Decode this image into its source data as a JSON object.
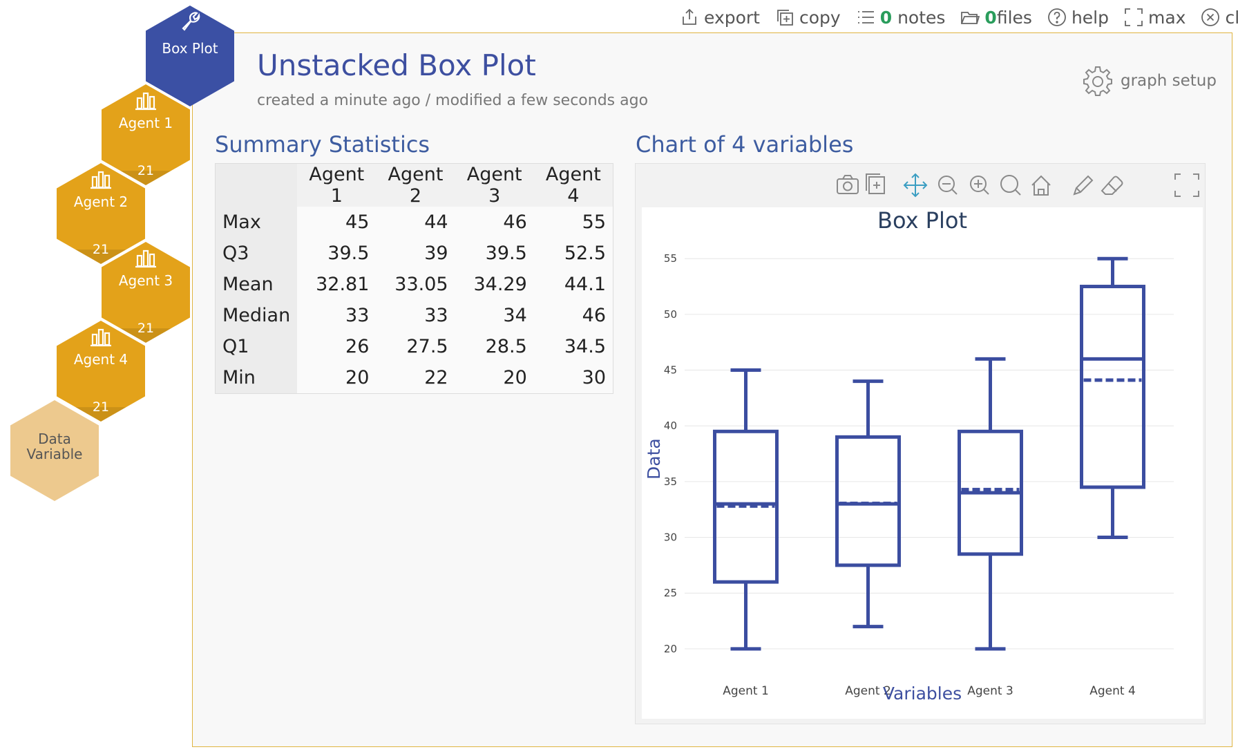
{
  "toolbar": {
    "export": "export",
    "copy": "copy",
    "notes_count": "0",
    "notes": "notes",
    "files_count": "0",
    "files": "files",
    "help": "help",
    "max": "max",
    "close": "close"
  },
  "page": {
    "title": "Unstacked Box Plot",
    "subtitle": "created a minute ago / modified a few seconds ago",
    "graph_setup": "graph setup"
  },
  "nav": {
    "box_plot": "Box Plot",
    "agents": [
      {
        "label": "Agent 1",
        "count": "21"
      },
      {
        "label": "Agent 2",
        "count": "21"
      },
      {
        "label": "Agent 3",
        "count": "21"
      },
      {
        "label": "Agent 4",
        "count": "21"
      }
    ],
    "data_variable_line1": "Data",
    "data_variable_line2": "Variable"
  },
  "stats": {
    "heading": "Summary Statistics",
    "columns": [
      "Agent 1",
      "Agent 2",
      "Agent 3",
      "Agent 4"
    ],
    "rows": [
      {
        "label": "Max",
        "values": [
          "45",
          "44",
          "46",
          "55"
        ]
      },
      {
        "label": "Q3",
        "values": [
          "39.5",
          "39",
          "39.5",
          "52.5"
        ]
      },
      {
        "label": "Mean",
        "values": [
          "32.81",
          "33.05",
          "34.29",
          "44.1"
        ]
      },
      {
        "label": "Median",
        "values": [
          "33",
          "33",
          "34",
          "46"
        ]
      },
      {
        "label": "Q1",
        "values": [
          "26",
          "27.5",
          "28.5",
          "34.5"
        ]
      },
      {
        "label": "Min",
        "values": [
          "20",
          "22",
          "20",
          "30"
        ]
      }
    ]
  },
  "chart": {
    "heading": "Chart of 4 variables"
  },
  "colors": {
    "accent": "#3d4fa0",
    "gold": "#e3a21a",
    "box": "#3b4da0"
  },
  "chart_data": {
    "type": "box",
    "title": "Box Plot",
    "xlabel": "Variables",
    "ylabel": "Data",
    "ylim": [
      19,
      56.5
    ],
    "yticks": [
      20,
      25,
      30,
      35,
      40,
      45,
      50,
      55
    ],
    "grid": true,
    "categories": [
      "Agent 1",
      "Agent 2",
      "Agent 3",
      "Agent 4"
    ],
    "series": [
      {
        "min": 20,
        "q1": 26,
        "median": 33,
        "mean": 32.81,
        "q3": 39.5,
        "max": 45
      },
      {
        "min": 22,
        "q1": 27.5,
        "median": 33,
        "mean": 33.05,
        "q3": 39,
        "max": 44
      },
      {
        "min": 20,
        "q1": 28.5,
        "median": 34,
        "mean": 34.29,
        "q3": 39.5,
        "max": 46
      },
      {
        "min": 30,
        "q1": 34.5,
        "median": 46,
        "mean": 44.1,
        "q3": 52.5,
        "max": 55
      }
    ]
  }
}
